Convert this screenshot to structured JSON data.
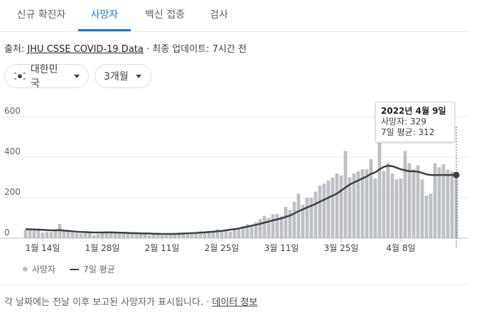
{
  "tabs": [
    {
      "label": "신규 확진자",
      "active": false
    },
    {
      "label": "사망자",
      "active": true
    },
    {
      "label": "백신 접종",
      "active": false
    },
    {
      "label": "검사",
      "active": false
    }
  ],
  "source": {
    "prefix": "출처: ",
    "link": "JHU CSSE COVID-19 Data",
    "updated": " · 최종 업데이트: 7시간 전"
  },
  "filters": {
    "region": "대한민국",
    "period": "3개월"
  },
  "tooltip": {
    "date": "2022년 4월 9일",
    "deaths": "사망자: 329",
    "avg": "7일 평균: 312"
  },
  "legend": {
    "bars": "사망자",
    "line": "7일 평균"
  },
  "footer": {
    "note": "각 날짜에는 전날 이후 보고된 사망자가 표시됩니다. ·",
    "link": "데이터 정보"
  },
  "colors": {
    "bar": "#bdc1c6",
    "line": "#3c4043",
    "active_tab": "#1a73e8"
  },
  "chart_data": {
    "type": "bar",
    "x_start": "2022-01-10",
    "x_end": "2022-04-09",
    "x_tick_labels": [
      "1월 14일",
      "1월 28일",
      "2월 11일",
      "2월 25일",
      "3월 11일",
      "3월 25일",
      "4월 8일"
    ],
    "y_tick_labels": [
      "0",
      "200",
      "400",
      "600"
    ],
    "ylim": [
      0,
      600
    ],
    "series": [
      {
        "name": "사망자",
        "type": "bar",
        "values": [
          40,
          40,
          38,
          48,
          28,
          32,
          30,
          42,
          70,
          35,
          40,
          28,
          25,
          22,
          25,
          28,
          15,
          20,
          25,
          30,
          32,
          25,
          22,
          28,
          30,
          25,
          22,
          24,
          20,
          15,
          18,
          20,
          15,
          16,
          18,
          22,
          28,
          20,
          18,
          20,
          25,
          28,
          25,
          30,
          28,
          45,
          35,
          38,
          32,
          40,
          45,
          60,
          70,
          60,
          80,
          95,
          110,
          100,
          118,
          120,
          110,
          155,
          140,
          180,
          220,
          165,
          200,
          200,
          230,
          260,
          270,
          285,
          300,
          320,
          310,
          430,
          300,
          320,
          330,
          340,
          340,
          390,
          295,
          470,
          330,
          370,
          320,
          290,
          295,
          430,
          370,
          340,
          360,
          290,
          210,
          220,
          370,
          350,
          365,
          340,
          330,
          329
        ]
      },
      {
        "name": "7일 평균",
        "type": "line",
        "values": [
          45,
          44,
          43,
          42,
          41,
          40,
          39,
          39,
          40,
          38,
          36,
          34,
          32,
          31,
          30,
          29,
          28,
          28,
          28,
          29,
          29,
          28,
          27,
          27,
          26,
          25,
          25,
          24,
          24,
          23,
          22,
          22,
          21,
          21,
          21,
          21,
          22,
          23,
          24,
          25,
          26,
          28,
          29,
          31,
          32,
          34,
          36,
          39,
          42,
          45,
          48,
          53,
          57,
          62,
          66,
          71,
          77,
          82,
          88,
          93,
          98,
          105,
          112,
          122,
          133,
          142,
          152,
          160,
          170,
          180,
          190,
          200,
          210,
          220,
          235,
          250,
          265,
          275,
          285,
          295,
          305,
          318,
          325,
          340,
          352,
          358,
          355,
          348,
          340,
          335,
          330,
          330,
          328,
          322,
          315,
          312,
          312,
          312,
          312,
          312,
          312,
          312
        ]
      }
    ],
    "highlight": {
      "date": "2022-04-09",
      "value": 329,
      "avg": 312
    },
    "grid": true
  }
}
